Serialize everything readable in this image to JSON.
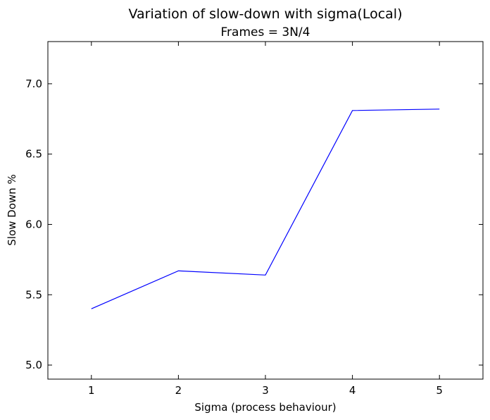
{
  "chart_data": {
    "type": "line",
    "title": "Variation of slow-down with sigma(Local)",
    "subtitle": "Frames = 3N/4",
    "xlabel": "Sigma (process behaviour)",
    "ylabel": "Slow Down %",
    "xlim": [
      0.5,
      5.5
    ],
    "ylim": [
      4.9,
      7.3
    ],
    "x_ticks": [
      1,
      2,
      3,
      4,
      5
    ],
    "x_tick_labels": [
      "1",
      "2",
      "3",
      "4",
      "5"
    ],
    "y_ticks": [
      5.0,
      5.5,
      6.0,
      6.5,
      7.0
    ],
    "y_tick_labels": [
      "5.0",
      "5.5",
      "6.0",
      "6.5",
      "7.0"
    ],
    "grid": false,
    "legend": "none",
    "series": [
      {
        "color": "#0000ff",
        "x": [
          1,
          2,
          3,
          4,
          5
        ],
        "y": [
          5.4,
          5.67,
          5.64,
          6.81,
          6.82
        ]
      }
    ]
  }
}
